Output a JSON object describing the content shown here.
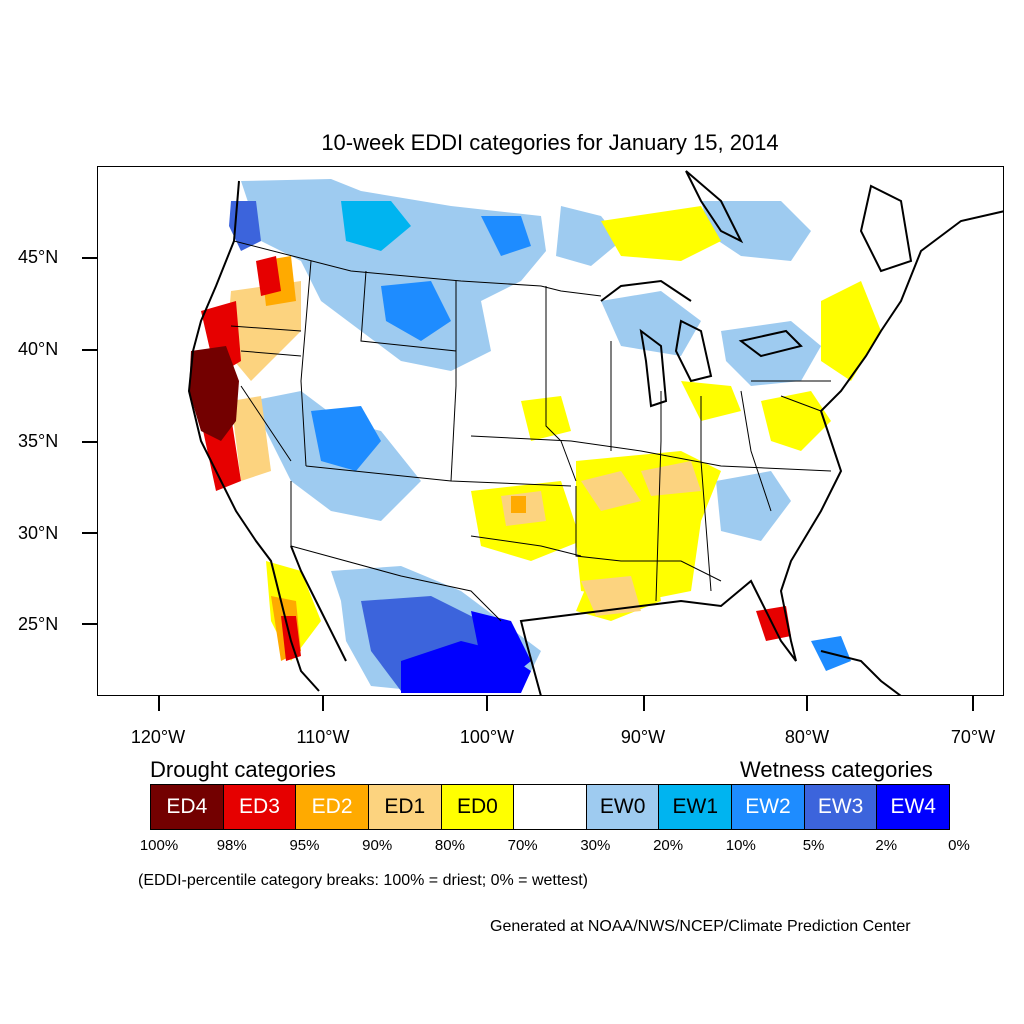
{
  "map": {
    "title": "10-week EDDI categories for January 15, 2014",
    "lat_labels": [
      "45°N",
      "40°N",
      "35°N",
      "30°N",
      "25°N"
    ],
    "lon_labels": [
      "120°W",
      "110°W",
      "100°W",
      "90°W",
      "80°W",
      "70°W"
    ],
    "colors": {
      "ED4": "#730000",
      "ED3": "#e60000",
      "ED2": "#ffaa00",
      "ED1": "#fcd37f",
      "ED0": "#ffff00",
      "neutral": "#ffffff",
      "EW0": "#9ecbf0",
      "EW1": "#00b4f0",
      "EW2": "#1e8cff",
      "EW3": "#3c64dc",
      "EW4": "#0000ff"
    }
  },
  "legend": {
    "drought_heading": "Drought categories",
    "wetness_heading": "Wetness categories",
    "cells": [
      {
        "label": "ED4",
        "color": "#730000",
        "text_color": "#ffffff"
      },
      {
        "label": "ED3",
        "color": "#e60000",
        "text_color": "#ffffff"
      },
      {
        "label": "ED2",
        "color": "#ffaa00",
        "text_color": "#ffffff"
      },
      {
        "label": "ED1",
        "color": "#fcd37f",
        "text_color": "#000000"
      },
      {
        "label": "ED0",
        "color": "#ffff00",
        "text_color": "#000000"
      },
      {
        "label": "",
        "color": "#ffffff",
        "text_color": "#000000"
      },
      {
        "label": "EW0",
        "color": "#9ecbf0",
        "text_color": "#000000"
      },
      {
        "label": "EW1",
        "color": "#00b4f0",
        "text_color": "#000000"
      },
      {
        "label": "EW2",
        "color": "#1e8cff",
        "text_color": "#ffffff"
      },
      {
        "label": "EW3",
        "color": "#3c64dc",
        "text_color": "#ffffff"
      },
      {
        "label": "EW4",
        "color": "#0000ff",
        "text_color": "#ffffff"
      }
    ],
    "percentiles": [
      "100%",
      "98%",
      "95%",
      "90%",
      "80%",
      "70%",
      "30%",
      "20%",
      "10%",
      "5%",
      "2%",
      "0%"
    ],
    "note": "(EDDI-percentile category breaks: 100% = driest; 0% = wettest)"
  },
  "credit": "Generated at NOAA/NWS/NCEP/Climate Prediction Center"
}
